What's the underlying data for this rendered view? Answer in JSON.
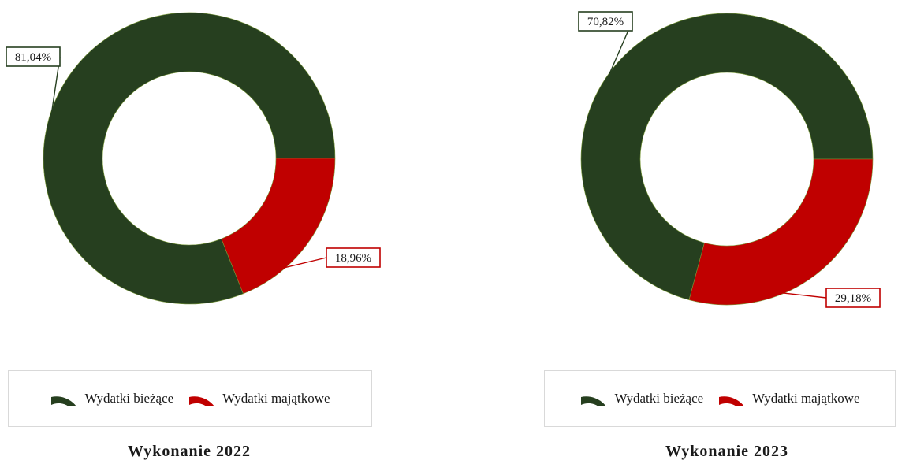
{
  "colors": {
    "current": "#263f1f",
    "capital": "#c00000"
  },
  "chart_data": [
    {
      "type": "pie",
      "title": "Wykonanie 2022",
      "categories": [
        "Wydatki bieżące",
        "Wydatki majątkowe"
      ],
      "values": [
        81.04,
        18.96
      ],
      "data_labels": [
        "81,04%",
        "18,96%"
      ],
      "legend": "bottom"
    },
    {
      "type": "pie",
      "title": "Wykonanie 2023",
      "categories": [
        "Wydatki bieżące",
        "Wydatki majątkowe"
      ],
      "values": [
        70.82,
        29.18
      ],
      "data_labels": [
        "70,82%",
        "29,18%"
      ],
      "legend": "bottom"
    }
  ]
}
